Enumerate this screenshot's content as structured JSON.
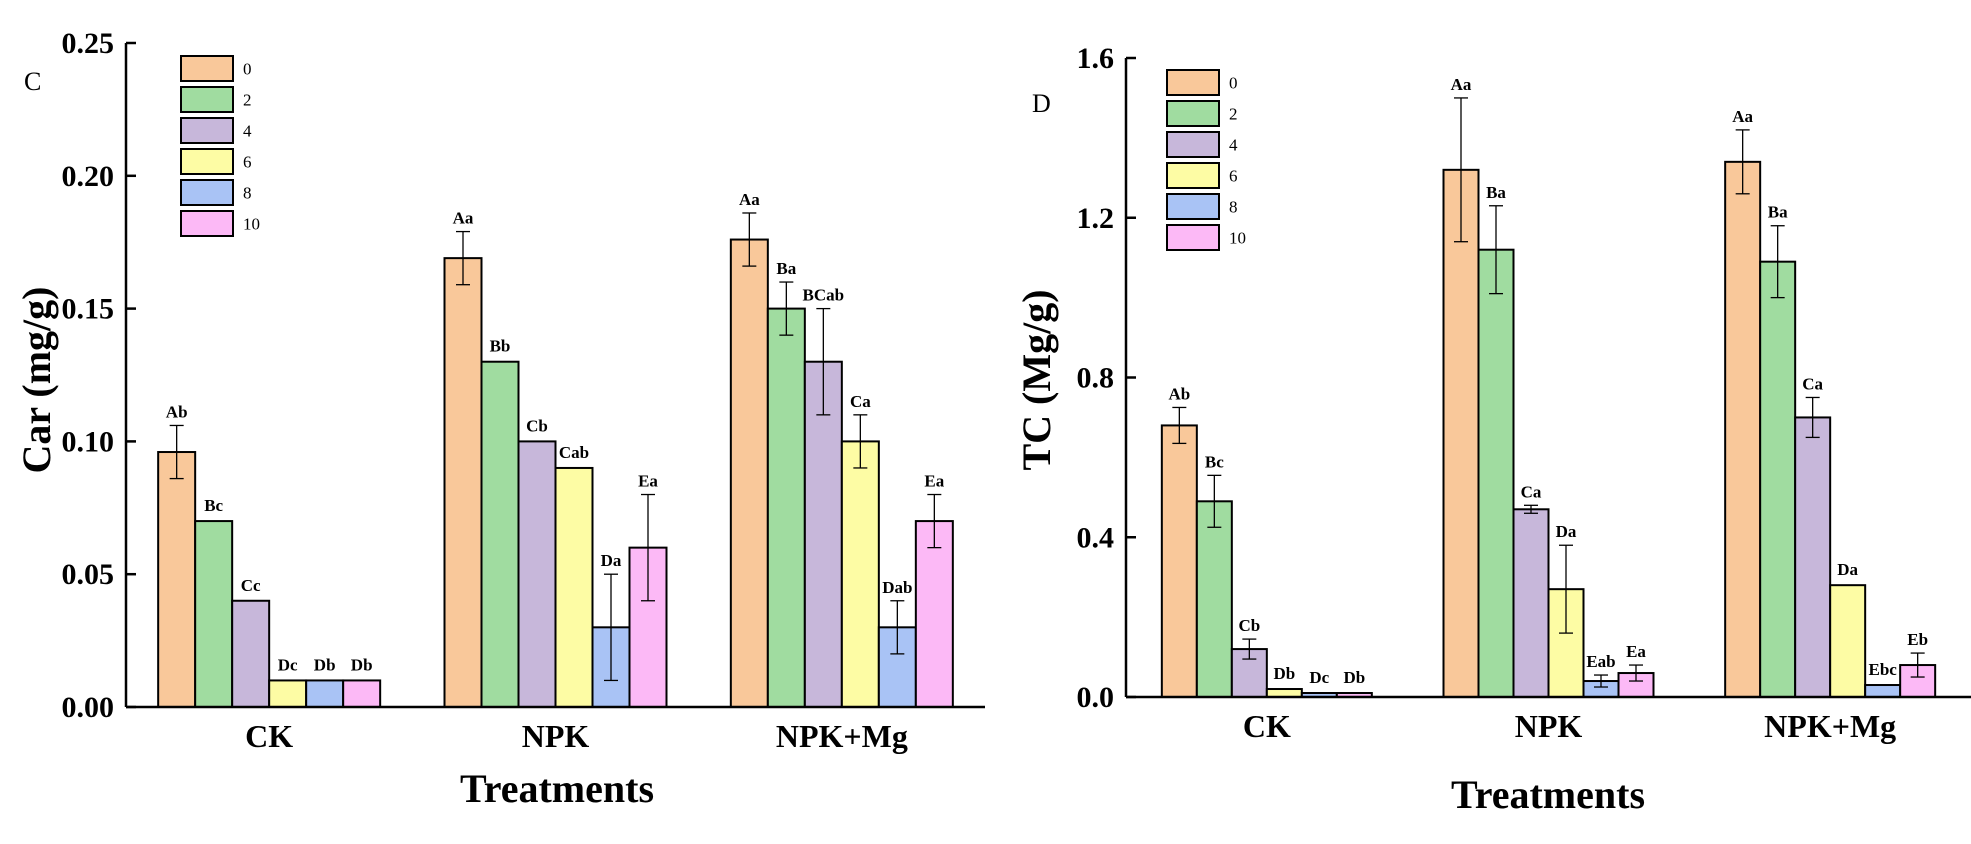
{
  "colors": [
    "#F9C89A",
    "#A0DCA0",
    "#C7B7DA",
    "#FDFCA4",
    "#A9C3F5",
    "#FCB9F6"
  ],
  "chart_data": [
    {
      "type": "bar",
      "panel_label": "C",
      "categories": [
        "CK",
        "NPK",
        "NPK+Mg"
      ],
      "xlabel": "Treatments",
      "ylabel": "Car (mg/g)",
      "ylim": [
        0,
        0.25
      ],
      "yticks": [
        "0.00",
        "0.05",
        "0.10",
        "0.15",
        "0.20",
        "0.25"
      ],
      "legend_position": "top-left",
      "series": [
        {
          "name": "0",
          "values": [
            0.096,
            0.169,
            0.176
          ],
          "errors": [
            0.01,
            0.01,
            0.01
          ],
          "labels": [
            "Ab",
            "Aa",
            "Aa"
          ]
        },
        {
          "name": "2",
          "values": [
            0.07,
            0.13,
            0.15
          ],
          "errors": [
            0,
            0,
            0.01
          ],
          "labels": [
            "Bc",
            "Bb",
            "Ba"
          ]
        },
        {
          "name": "4",
          "values": [
            0.04,
            0.1,
            0.13
          ],
          "errors": [
            0,
            0,
            0.02
          ],
          "labels": [
            "Cc",
            "Cb",
            "BCab"
          ]
        },
        {
          "name": "6",
          "values": [
            0.01,
            0.09,
            0.1
          ],
          "errors": [
            0,
            0,
            0.01
          ],
          "labels": [
            "Dc",
            "Cab",
            "Ca"
          ]
        },
        {
          "name": "8",
          "values": [
            0.01,
            0.03,
            0.03
          ],
          "errors": [
            0,
            0.02,
            0.01
          ],
          "labels": [
            "Db",
            "Da",
            "Dab"
          ]
        },
        {
          "name": "10",
          "values": [
            0.01,
            0.06,
            0.07
          ],
          "errors": [
            0,
            0.02,
            0.01
          ],
          "labels": [
            "Db",
            "Ea",
            "Ea"
          ]
        }
      ]
    },
    {
      "type": "bar",
      "panel_label": "D",
      "categories": [
        "CK",
        "NPK",
        "NPK+Mg"
      ],
      "xlabel": "Treatments",
      "ylabel": "TC (Mg/g)",
      "ylim": [
        0,
        1.6
      ],
      "yticks": [
        "0.0",
        "0.4",
        "0.8",
        "1.2",
        "1.6"
      ],
      "legend_position": "top-left",
      "series": [
        {
          "name": "0",
          "values": [
            0.68,
            1.32,
            1.34
          ],
          "errors": [
            0.045,
            0.18,
            0.08
          ],
          "labels": [
            "Ab",
            "Aa",
            "Aa"
          ]
        },
        {
          "name": "2",
          "values": [
            0.49,
            1.12,
            1.09
          ],
          "errors": [
            0.065,
            0.11,
            0.09
          ],
          "labels": [
            "Bc",
            "Ba",
            "Ba"
          ]
        },
        {
          "name": "4",
          "values": [
            0.12,
            0.47,
            0.7
          ],
          "errors": [
            0.025,
            0.01,
            0.05
          ],
          "labels": [
            "Cb",
            "Ca",
            "Ca"
          ]
        },
        {
          "name": "6",
          "values": [
            0.02,
            0.27,
            0.28
          ],
          "errors": [
            0,
            0.11,
            0
          ],
          "labels": [
            "Db",
            "Da",
            "Da"
          ]
        },
        {
          "name": "8",
          "values": [
            0.01,
            0.04,
            0.03
          ],
          "errors": [
            0,
            0.015,
            0
          ],
          "labels": [
            "Dc",
            "Eab",
            "Ebc"
          ]
        },
        {
          "name": "10",
          "values": [
            0.01,
            0.06,
            0.08
          ],
          "errors": [
            0,
            0.02,
            0.03
          ],
          "labels": [
            "Db",
            "Ea",
            "Eb"
          ]
        }
      ]
    }
  ]
}
